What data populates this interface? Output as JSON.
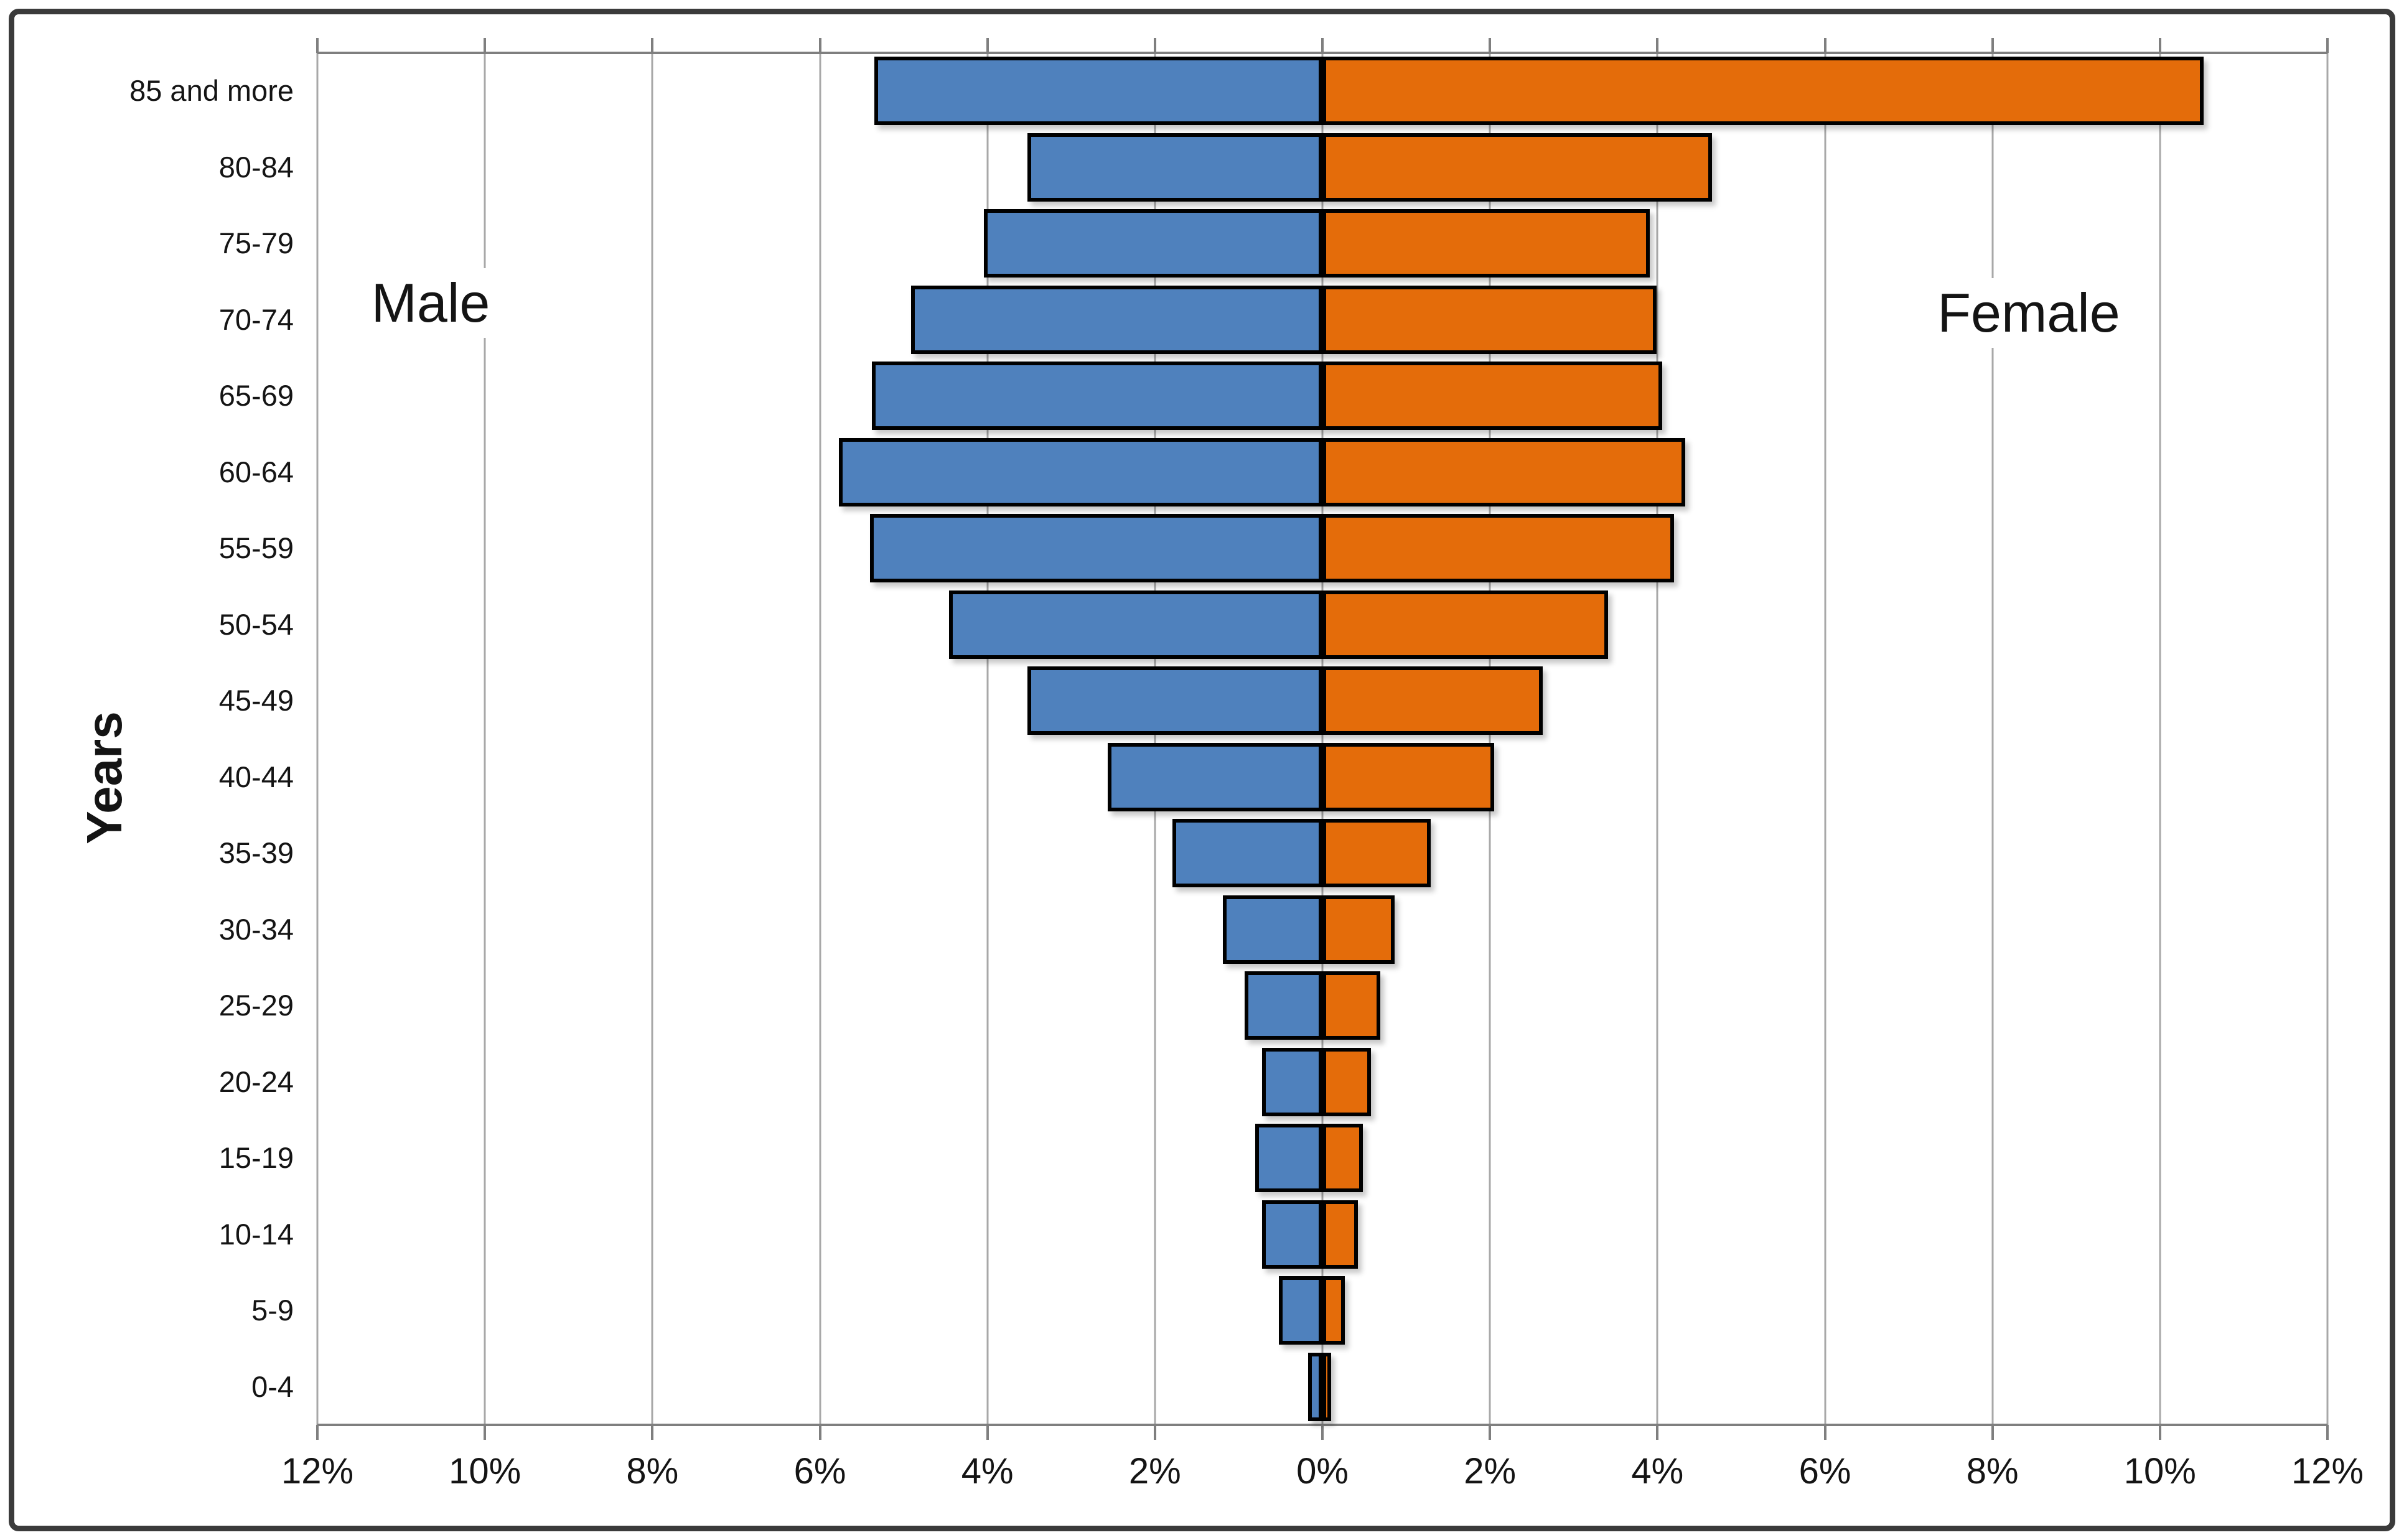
{
  "chart_data": {
    "type": "bar",
    "subtype": "population-pyramid",
    "title": "",
    "ylabel": "Years",
    "left_series_label": "Male",
    "right_series_label": "Female",
    "categories_top_to_bottom": [
      "85 and more",
      "80-84",
      "75-79",
      "70-74",
      "65-69",
      "60-64",
      "55-59",
      "50-54",
      "45-49",
      "40-44",
      "35-39",
      "30-34",
      "25-29",
      "20-24",
      "15-19",
      "10-14",
      "5-9",
      "0-4"
    ],
    "series": [
      {
        "name": "Male",
        "side": "left",
        "color": "#4f81bd",
        "values_pct": [
          5.35,
          3.52,
          4.04,
          4.91,
          5.38,
          5.77,
          5.4,
          4.46,
          3.52,
          2.56,
          1.79,
          1.19,
          0.93,
          0.72,
          0.8,
          0.72,
          0.52,
          0.17
        ]
      },
      {
        "name": "Female",
        "side": "right",
        "color": "#e46c0a",
        "values_pct": [
          10.52,
          4.65,
          3.91,
          3.99,
          4.06,
          4.33,
          4.2,
          3.41,
          2.63,
          2.05,
          1.29,
          0.86,
          0.69,
          0.58,
          0.48,
          0.42,
          0.27,
          0.1
        ]
      }
    ],
    "x_axis": {
      "tick_labels": [
        "12%",
        "10%",
        "8%",
        "6%",
        "4%",
        "2%",
        "0%",
        "2%",
        "4%",
        "6%",
        "8%",
        "10%",
        "12%"
      ],
      "tick_step_pct": 2,
      "max_pct_each_side": 12,
      "grid": true,
      "gridline_color": "#a8a8a8",
      "axis_line_color": "#7f7f7f"
    },
    "legend_position": "none",
    "bar_border_color": "#000000",
    "background_color": "#ffffff",
    "frame_border_color": "#3b3b3b"
  }
}
